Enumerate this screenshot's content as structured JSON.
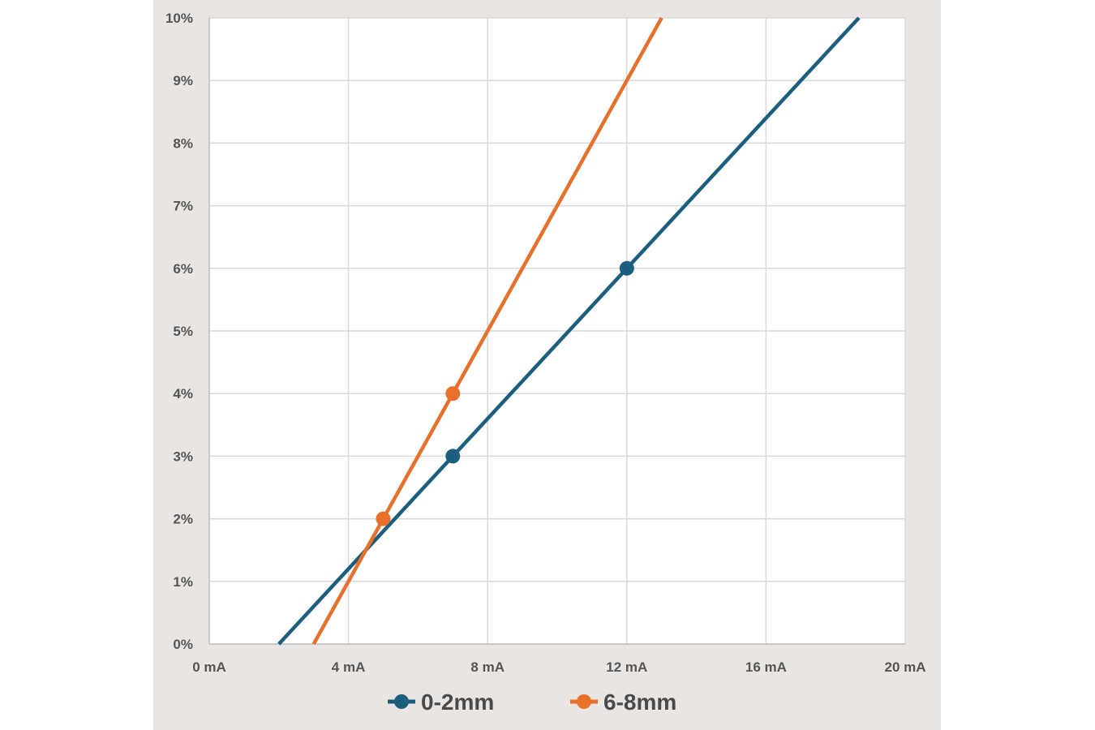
{
  "chart_data": {
    "type": "line",
    "title": "",
    "xlabel": "",
    "ylabel": "",
    "xlim": [
      0,
      20
    ],
    "ylim": [
      0,
      10
    ],
    "x_ticks": [
      "0 mA",
      "4 mA",
      "8 mA",
      "12 mA",
      "16 mA",
      "20 mA"
    ],
    "x_tick_values": [
      0,
      4,
      8,
      12,
      16,
      20
    ],
    "y_ticks": [
      "0%",
      "1%",
      "2%",
      "3%",
      "4%",
      "5%",
      "6%",
      "7%",
      "8%",
      "9%",
      "10%"
    ],
    "y_tick_values": [
      0,
      1,
      2,
      3,
      4,
      5,
      6,
      7,
      8,
      9,
      10
    ],
    "grid": true,
    "legend_position": "bottom",
    "series": [
      {
        "name": "0-2mm",
        "color": "#1b5e7e",
        "points": [
          [
            7,
            3
          ],
          [
            12,
            6
          ]
        ],
        "line": [
          [
            2,
            0
          ],
          [
            18.67,
            10
          ]
        ]
      },
      {
        "name": "6-8mm",
        "color": "#e8702a",
        "points": [
          [
            5,
            2
          ],
          [
            7,
            4
          ]
        ],
        "line": [
          [
            3,
            0
          ],
          [
            13,
            10
          ]
        ]
      }
    ]
  }
}
